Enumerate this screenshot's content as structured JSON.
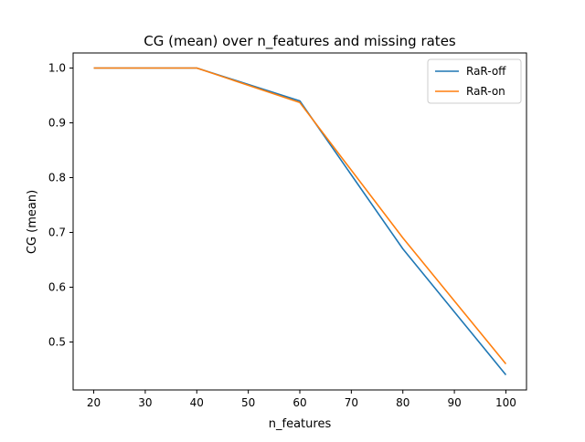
{
  "chart_data": {
    "type": "line",
    "title": "CG (mean) over n_features and missing rates",
    "xlabel": "n_features",
    "ylabel": "CG (mean)",
    "x": [
      20,
      40,
      60,
      80,
      100
    ],
    "xlim": [
      16,
      104
    ],
    "ylim": [
      0.4125,
      1.0275
    ],
    "xticks": [
      20,
      30,
      40,
      50,
      60,
      70,
      80,
      90,
      100
    ],
    "yticks": [
      0.5,
      0.6,
      0.7,
      0.8,
      0.9,
      1.0
    ],
    "xtick_labels": [
      "20",
      "30",
      "40",
      "50",
      "60",
      "70",
      "80",
      "90",
      "100"
    ],
    "ytick_labels": [
      "0.5",
      "0.6",
      "0.7",
      "0.8",
      "0.9",
      "1.0"
    ],
    "grid": false,
    "legend_position": "top-right",
    "series": [
      {
        "name": "RaR-off",
        "color": "#1f77b4",
        "values": [
          1.0,
          1.0,
          0.94,
          0.67,
          0.44
        ]
      },
      {
        "name": "RaR-on",
        "color": "#ff7f0e",
        "values": [
          1.0,
          1.0,
          0.937,
          0.69,
          0.46
        ]
      }
    ]
  }
}
